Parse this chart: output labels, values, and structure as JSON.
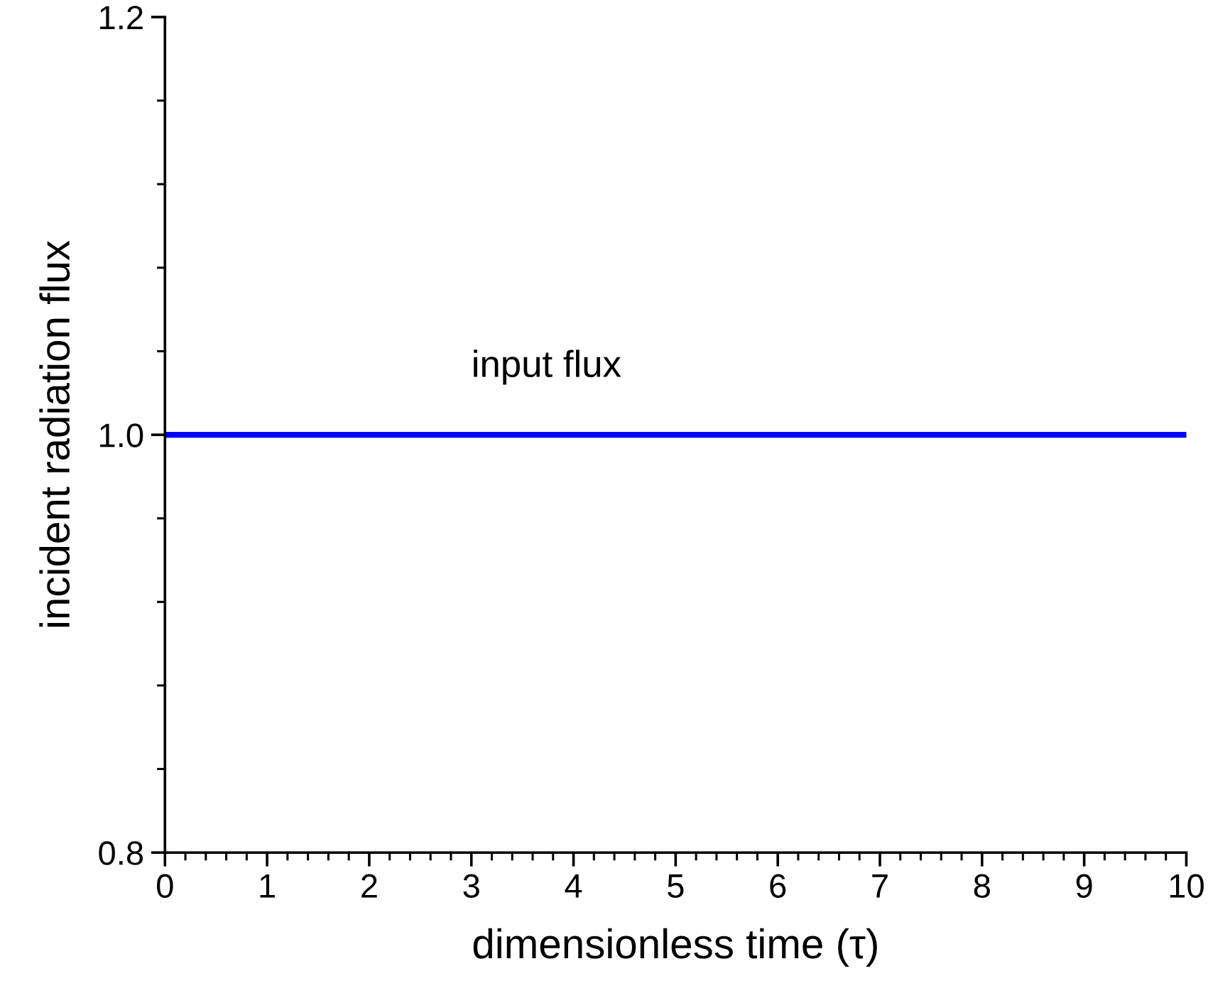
{
  "chart_data": {
    "type": "line",
    "xlabel": "dimensionless time (τ)",
    "ylabel": "incident radiation flux",
    "x": [
      0,
      10
    ],
    "series": [
      {
        "name": "input flux",
        "color": "#0000ff",
        "values": [
          1.0,
          1.0
        ]
      }
    ],
    "xlim": [
      0,
      10
    ],
    "ylim": [
      0.8,
      1.2
    ],
    "xticks": [
      0,
      {
        "value": 0.2,
        "label": null
      },
      {
        "value": 0.4,
        "label": null
      },
      {
        "value": 0.6,
        "label": null
      },
      {
        "value": 0.8,
        "label": null
      },
      1,
      {
        "value": 1.2,
        "label": null
      },
      {
        "value": 1.4,
        "label": null
      },
      {
        "value": 1.6,
        "label": null
      },
      {
        "value": 1.8,
        "label": null
      },
      2,
      {
        "value": 2.2,
        "label": null
      },
      {
        "value": 2.4,
        "label": null
      },
      {
        "value": 2.6,
        "label": null
      },
      {
        "value": 2.8,
        "label": null
      },
      3,
      {
        "value": 3.2,
        "label": null
      },
      {
        "value": 3.4,
        "label": null
      },
      {
        "value": 3.6,
        "label": null
      },
      {
        "value": 3.8,
        "label": null
      },
      4,
      {
        "value": 4.2,
        "label": null
      },
      {
        "value": 4.4,
        "label": null
      },
      {
        "value": 4.6,
        "label": null
      },
      {
        "value": 4.8,
        "label": null
      },
      5,
      {
        "value": 5.2,
        "label": null
      },
      {
        "value": 5.4,
        "label": null
      },
      {
        "value": 5.6,
        "label": null
      },
      {
        "value": 5.8,
        "label": null
      },
      6,
      {
        "value": 6.2,
        "label": null
      },
      {
        "value": 6.4,
        "label": null
      },
      {
        "value": 6.6,
        "label": null
      },
      {
        "value": 6.8,
        "label": null
      },
      7,
      {
        "value": 7.2,
        "label": null
      },
      {
        "value": 7.4,
        "label": null
      },
      {
        "value": 7.6,
        "label": null
      },
      {
        "value": 7.8,
        "label": null
      },
      8,
      {
        "value": 8.2,
        "label": null
      },
      {
        "value": 8.4,
        "label": null
      },
      {
        "value": 8.6,
        "label": null
      },
      {
        "value": 8.8,
        "label": null
      },
      9,
      {
        "value": 9.2,
        "label": null
      },
      {
        "value": 9.4,
        "label": null
      },
      {
        "value": 9.6,
        "label": null
      },
      {
        "value": 9.8,
        "label": null
      },
      10
    ],
    "yticks": [
      {
        "value": 0.8,
        "label": "0.8"
      },
      {
        "value": 0.84,
        "label": null
      },
      {
        "value": 0.88,
        "label": null
      },
      {
        "value": 0.92,
        "label": null
      },
      {
        "value": 0.96,
        "label": null
      },
      {
        "value": 1.0,
        "label": "1.0"
      },
      {
        "value": 1.04,
        "label": null
      },
      {
        "value": 1.08,
        "label": null
      },
      {
        "value": 1.12,
        "label": null
      },
      {
        "value": 1.16,
        "label": null
      },
      {
        "value": 1.2,
        "label": "1.2"
      }
    ],
    "grid": false,
    "legend": false,
    "marker": "none",
    "line_style": "solid"
  }
}
